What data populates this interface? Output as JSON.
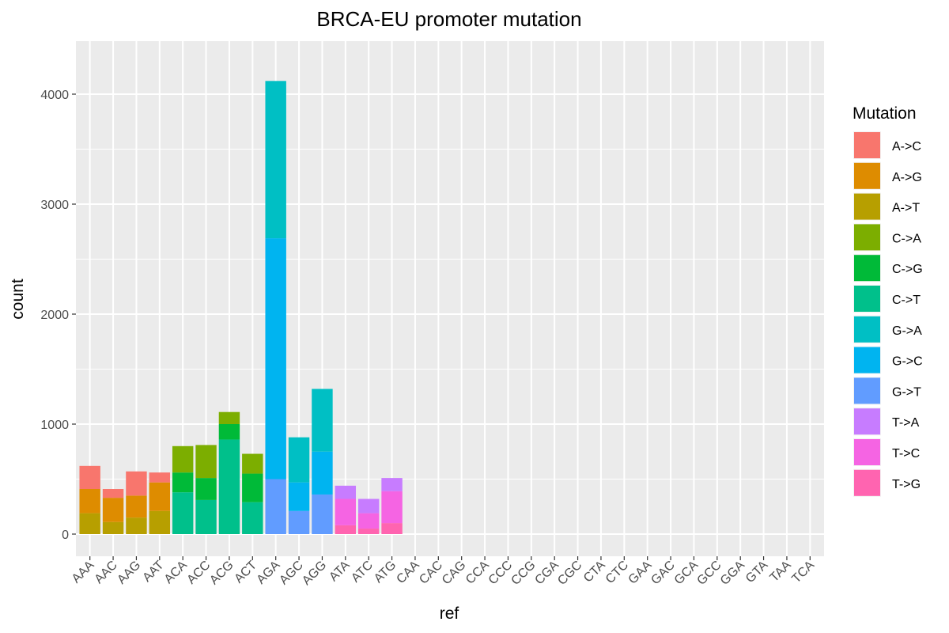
{
  "chart_data": {
    "type": "bar",
    "stacked": true,
    "title": "BRCA-EU promoter mutation",
    "xlabel": "ref",
    "ylabel": "count",
    "ylim": [
      0,
      4450
    ],
    "yticks": [
      0,
      1000,
      2000,
      3000,
      4000
    ],
    "grid": true,
    "legend_position": "right",
    "legend_title": "Mutation",
    "categories": [
      "AAA",
      "AAC",
      "AAG",
      "AAT",
      "ACA",
      "ACC",
      "ACG",
      "ACT",
      "AGA",
      "AGC",
      "AGG",
      "ATA",
      "ATC",
      "ATG",
      "CAA",
      "CAC",
      "CAG",
      "CCA",
      "CCC",
      "CCG",
      "CGA",
      "CGC",
      "CTA",
      "CTC",
      "GAA",
      "GAC",
      "GCA",
      "GCC",
      "GGA",
      "GTA",
      "TAA",
      "TCA"
    ],
    "series": [
      {
        "name": "A->C",
        "color": "#F8766D",
        "values": [
          210,
          80,
          220,
          90,
          0,
          0,
          0,
          0,
          0,
          0,
          0,
          0,
          0,
          0,
          0,
          0,
          0,
          0,
          0,
          0,
          0,
          0,
          0,
          0,
          0,
          0,
          0,
          0,
          0,
          0,
          0,
          0
        ]
      },
      {
        "name": "A->G",
        "color": "#DE8C00",
        "values": [
          220,
          220,
          200,
          260,
          0,
          0,
          0,
          0,
          0,
          0,
          0,
          0,
          0,
          0,
          0,
          0,
          0,
          0,
          0,
          0,
          0,
          0,
          0,
          0,
          0,
          0,
          0,
          0,
          0,
          0,
          0,
          0
        ]
      },
      {
        "name": "A->T",
        "color": "#B79F00",
        "values": [
          190,
          110,
          150,
          210,
          0,
          0,
          0,
          0,
          0,
          0,
          0,
          0,
          0,
          0,
          0,
          0,
          0,
          0,
          0,
          0,
          0,
          0,
          0,
          0,
          0,
          0,
          0,
          0,
          0,
          0,
          0,
          0
        ]
      },
      {
        "name": "C->A",
        "color": "#7CAE00",
        "values": [
          0,
          0,
          0,
          0,
          240,
          300,
          110,
          180,
          0,
          0,
          0,
          0,
          0,
          0,
          0,
          0,
          0,
          0,
          0,
          0,
          0,
          0,
          0,
          0,
          0,
          0,
          0,
          0,
          0,
          0,
          0,
          0
        ]
      },
      {
        "name": "C->G",
        "color": "#00BA38",
        "values": [
          0,
          0,
          0,
          0,
          180,
          200,
          140,
          260,
          0,
          0,
          0,
          0,
          0,
          0,
          0,
          0,
          0,
          0,
          0,
          0,
          0,
          0,
          0,
          0,
          0,
          0,
          0,
          0,
          0,
          0,
          0,
          0
        ]
      },
      {
        "name": "C->T",
        "color": "#00C08B",
        "values": [
          0,
          0,
          0,
          0,
          380,
          310,
          860,
          290,
          0,
          0,
          0,
          0,
          0,
          0,
          0,
          0,
          0,
          0,
          0,
          0,
          0,
          0,
          0,
          0,
          0,
          0,
          0,
          0,
          0,
          0,
          0,
          0
        ]
      },
      {
        "name": "G->A",
        "color": "#00BFC4",
        "values": [
          0,
          0,
          0,
          0,
          0,
          0,
          0,
          0,
          1430,
          410,
          570,
          0,
          0,
          0,
          0,
          0,
          0,
          0,
          0,
          0,
          0,
          0,
          0,
          0,
          0,
          0,
          0,
          0,
          0,
          0,
          0,
          0
        ]
      },
      {
        "name": "G->C",
        "color": "#00B4F0",
        "values": [
          0,
          0,
          0,
          0,
          0,
          0,
          0,
          0,
          2190,
          260,
          390,
          0,
          0,
          0,
          0,
          0,
          0,
          0,
          0,
          0,
          0,
          0,
          0,
          0,
          0,
          0,
          0,
          0,
          0,
          0,
          0,
          0
        ]
      },
      {
        "name": "G->T",
        "color": "#619CFF",
        "values": [
          0,
          0,
          0,
          0,
          0,
          0,
          0,
          0,
          500,
          210,
          360,
          0,
          0,
          0,
          0,
          0,
          0,
          0,
          0,
          0,
          0,
          0,
          0,
          0,
          0,
          0,
          0,
          0,
          0,
          0,
          0,
          0
        ]
      },
      {
        "name": "T->A",
        "color": "#C77CFF",
        "values": [
          0,
          0,
          0,
          0,
          0,
          0,
          0,
          0,
          0,
          0,
          0,
          120,
          130,
          120,
          0,
          0,
          0,
          0,
          0,
          0,
          0,
          0,
          0,
          0,
          0,
          0,
          0,
          0,
          0,
          0,
          0,
          0
        ]
      },
      {
        "name": "T->C",
        "color": "#F564E3",
        "values": [
          0,
          0,
          0,
          0,
          0,
          0,
          0,
          0,
          0,
          0,
          0,
          240,
          140,
          290,
          0,
          0,
          0,
          0,
          0,
          0,
          0,
          0,
          0,
          0,
          0,
          0,
          0,
          0,
          0,
          0,
          0,
          0
        ]
      },
      {
        "name": "T->G",
        "color": "#FF64B0",
        "values": [
          0,
          0,
          0,
          0,
          0,
          0,
          0,
          0,
          0,
          0,
          0,
          80,
          50,
          100,
          0,
          0,
          0,
          0,
          0,
          0,
          0,
          0,
          0,
          0,
          0,
          0,
          0,
          0,
          0,
          0,
          0,
          0
        ]
      }
    ]
  }
}
